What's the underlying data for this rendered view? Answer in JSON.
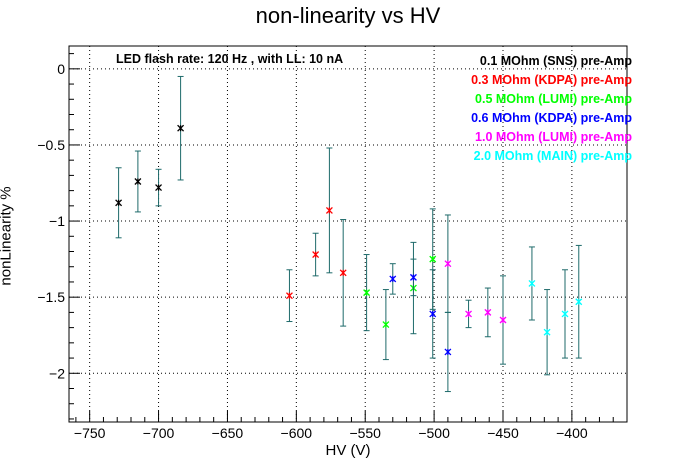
{
  "chart_data": {
    "type": "scatter",
    "title": "non-linearity vs HV",
    "xlabel": "HV (V)",
    "ylabel": "nonLinearity %",
    "xlim": [
      -765,
      -360
    ],
    "ylim": [
      -2.32,
      0.15
    ],
    "xticks": [
      -750,
      -700,
      -650,
      -600,
      -550,
      -500,
      -450,
      -400
    ],
    "yticks": [
      0,
      -0.5,
      -1,
      -1.5,
      -2
    ],
    "grid": true,
    "annotation": "LED flash rate: 120 Hz , with LL: 10 nA",
    "legend_position": "top-right",
    "series": [
      {
        "name": "0.1 MOhm (SNS) pre-Amp",
        "color": "#000000",
        "points": [
          {
            "x": -729,
            "y": -0.88,
            "err": 0.23
          },
          {
            "x": -715,
            "y": -0.74,
            "err": 0.2
          },
          {
            "x": -700,
            "y": -0.78,
            "err": 0.12
          },
          {
            "x": -684,
            "y": -0.39,
            "err": 0.34
          }
        ]
      },
      {
        "name": "0.3 MOhm (KDPA) pre-Amp",
        "color": "#ff0000",
        "points": [
          {
            "x": -605,
            "y": -1.49,
            "err": 0.17
          },
          {
            "x": -586,
            "y": -1.22,
            "err": 0.14
          },
          {
            "x": -576,
            "y": -0.93,
            "err": 0.41
          },
          {
            "x": -566,
            "y": -1.34,
            "err": 0.35
          }
        ]
      },
      {
        "name": "0.5 MOhm (LUMI) pre-Amp",
        "color": "#00ff00",
        "points": [
          {
            "x": -549,
            "y": -1.47,
            "err": 0.25
          },
          {
            "x": -535,
            "y": -1.68,
            "err": 0.23
          },
          {
            "x": -515,
            "y": -1.44,
            "err": 0.3
          },
          {
            "x": -501,
            "y": -1.25,
            "err": 0.33
          }
        ]
      },
      {
        "name": "0.6 MOhm (KDPA) pre-Amp",
        "color": "#0000ff",
        "points": [
          {
            "x": -530,
            "y": -1.38,
            "err": 0.1
          },
          {
            "x": -515,
            "y": -1.37,
            "err": 0.12
          },
          {
            "x": -501,
            "y": -1.61,
            "err": 0.29
          },
          {
            "x": -490,
            "y": -1.86,
            "err": 0.26
          }
        ]
      },
      {
        "name": "1.0 MOhm (LUMI) pre-Amp",
        "color": "#ff00ff",
        "points": [
          {
            "x": -490,
            "y": -1.28,
            "err": 0.32
          },
          {
            "x": -475,
            "y": -1.61,
            "err": 0.09
          },
          {
            "x": -461,
            "y": -1.6,
            "err": 0.16
          },
          {
            "x": -450,
            "y": -1.65,
            "err": 0.29
          }
        ]
      },
      {
        "name": "2.0 MOhm (MAIN) pre-Amp",
        "color": "#00ffff",
        "points": [
          {
            "x": -429,
            "y": -1.41,
            "err": 0.24
          },
          {
            "x": -418,
            "y": -1.73,
            "err": 0.28
          },
          {
            "x": -405,
            "y": -1.61,
            "err": 0.29
          },
          {
            "x": -395,
            "y": -1.53,
            "err": 0.37
          }
        ]
      }
    ]
  }
}
